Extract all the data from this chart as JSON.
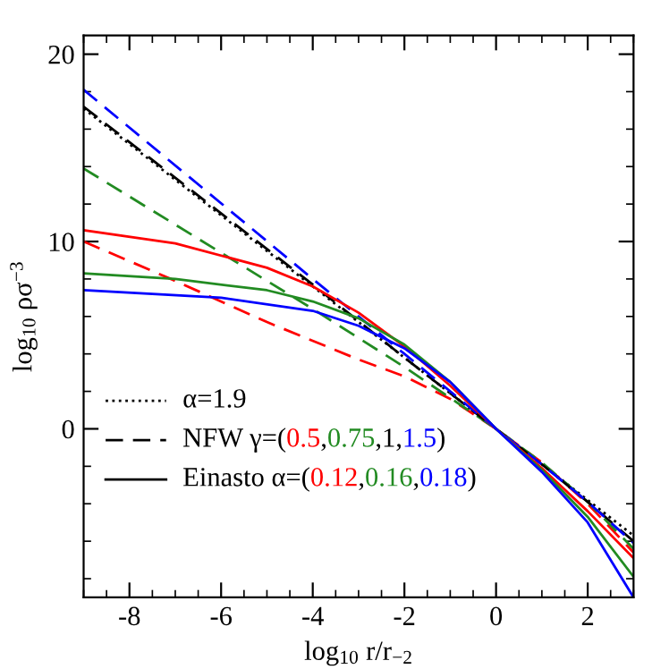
{
  "chart_data": {
    "type": "line",
    "xlabel": "log$_{10}$ r/r$_{−2}$",
    "ylabel": "log$_{10}$ ρσ$^{−3}$",
    "xlim": [
      -9,
      3
    ],
    "ylim": [
      -9,
      21
    ],
    "xticks": [
      -8,
      -6,
      -4,
      -2,
      0,
      2
    ],
    "yticks": [
      0,
      10,
      20
    ],
    "grid": false,
    "annotations": [
      "α=1.9",
      "NFW γ=(0.5,0.75,1,1.5)",
      "Einasto α=(0.12,0.16,0.18)"
    ],
    "series": [
      {
        "color": "#000000",
        "line_style": "dotted",
        "x": [
          -9,
          -6,
          -3,
          0,
          1,
          2,
          3
        ],
        "values": [
          17.1,
          11.4,
          5.7,
          0,
          -1.9,
          -3.8,
          -5.7
        ]
      },
      {
        "color": "#ff0000",
        "line_style": "dashed",
        "x": [
          -9,
          -7,
          -5,
          -3,
          -2,
          -1,
          0,
          1,
          2,
          3
        ],
        "values": [
          10.0,
          7.9,
          5.7,
          3.7,
          2.8,
          1.6,
          0,
          -1.8,
          -4.0,
          -6.6
        ]
      },
      {
        "color": "#228b22",
        "line_style": "dashed",
        "x": [
          -9,
          -6,
          -4,
          -2,
          0,
          1,
          2,
          3
        ],
        "values": [
          13.9,
          9.4,
          6.4,
          3.3,
          0,
          -1.8,
          -3.9,
          -6.4
        ]
      },
      {
        "color": "#000000",
        "line_style": "dashed",
        "x": [
          -9,
          -4,
          -2,
          0,
          1,
          2,
          3
        ],
        "values": [
          17.2,
          7.7,
          3.8,
          0,
          -1.9,
          -3.9,
          -6.0
        ]
      },
      {
        "color": "#0000ff",
        "line_style": "dashed",
        "x": [
          -9,
          -4,
          -2,
          0,
          1,
          2,
          3
        ],
        "values": [
          18.1,
          8.0,
          4.0,
          0,
          -1.9,
          -3.9,
          -6.1
        ]
      },
      {
        "color": "#ff0000",
        "line_style": "solid",
        "x": [
          -9,
          -7,
          -5,
          -4,
          -3,
          -2,
          -1,
          0,
          1,
          2,
          3
        ],
        "values": [
          10.6,
          9.9,
          8.6,
          7.6,
          6.2,
          4.4,
          2.3,
          0,
          -2.1,
          -4.4,
          -6.9
        ]
      },
      {
        "color": "#228b22",
        "line_style": "solid",
        "x": [
          -9,
          -7,
          -5,
          -4,
          -3,
          -2,
          -1,
          0,
          1,
          2,
          3
        ],
        "values": [
          8.3,
          8.0,
          7.4,
          6.8,
          5.9,
          4.5,
          2.5,
          0,
          -2.2,
          -4.7,
          -7.9
        ]
      },
      {
        "color": "#0000ff",
        "line_style": "solid",
        "x": [
          -9,
          -6,
          -4,
          -3,
          -2,
          -1,
          0,
          1,
          2,
          3
        ],
        "values": [
          7.4,
          7.0,
          6.3,
          5.5,
          4.3,
          2.5,
          0,
          -2.3,
          -5.0,
          -9.0
        ]
      }
    ]
  }
}
